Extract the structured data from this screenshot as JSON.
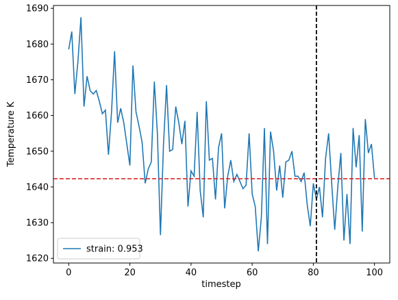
{
  "chart_data": {
    "type": "line",
    "x_label": "timestep",
    "y_label": "Temperature K",
    "x": [
      0,
      1,
      2,
      3,
      4,
      5,
      6,
      7,
      8,
      9,
      10,
      11,
      12,
      13,
      14,
      15,
      16,
      17,
      18,
      19,
      20,
      21,
      22,
      23,
      24,
      25,
      26,
      27,
      28,
      29,
      30,
      31,
      32,
      33,
      34,
      35,
      36,
      37,
      38,
      39,
      40,
      41,
      42,
      43,
      44,
      45,
      46,
      47,
      48,
      49,
      50,
      51,
      52,
      53,
      54,
      55,
      56,
      57,
      58,
      59,
      60,
      61,
      62,
      63,
      64,
      65,
      66,
      67,
      68,
      69,
      70,
      71,
      72,
      73,
      74,
      75,
      76,
      77,
      78,
      79,
      80,
      81,
      82,
      83,
      84,
      85,
      86,
      87,
      88,
      89,
      90,
      91,
      92,
      93,
      94,
      95,
      96,
      97,
      98,
      99,
      100
    ],
    "series": [
      {
        "name": "strain: 0.953",
        "color": "#1f77b4",
        "values": [
          1678.5,
          1683.5,
          1666,
          1675,
          1687.5,
          1662.5,
          1671,
          1667,
          1666,
          1667,
          1664,
          1660.5,
          1661.5,
          1649,
          1661,
          1678,
          1658,
          1662,
          1658,
          1652,
          1646,
          1674,
          1661,
          1657,
          1652.5,
          1641,
          1645,
          1647,
          1669.5,
          1655,
          1626.5,
          1652,
          1668.5,
          1650,
          1650.5,
          1662.5,
          1658,
          1652,
          1658.5,
          1634.5,
          1644.5,
          1643,
          1661,
          1639,
          1631.5,
          1664,
          1647.5,
          1648,
          1636.5,
          1651,
          1655,
          1634,
          1643,
          1647.5,
          1641.5,
          1643.5,
          1641.5,
          1639.5,
          1640.5,
          1655,
          1638,
          1634.5,
          1622,
          1631.5,
          1656.5,
          1624,
          1655.5,
          1650,
          1639,
          1646,
          1637,
          1647,
          1647.5,
          1650,
          1643,
          1643,
          1641.5,
          1644,
          1635,
          1629,
          1641,
          1636.5,
          1640,
          1631.5,
          1648,
          1655,
          1641,
          1628,
          1640,
          1649.5,
          1625,
          1638,
          1624,
          1656.5,
          1645.5,
          1654.5,
          1627.5,
          1659,
          1649.5,
          1652,
          1642.5
        ]
      }
    ],
    "hline": {
      "value": 1642.3,
      "color": "#d62728"
    },
    "vline": {
      "value": 81,
      "color": "#000000"
    },
    "xlim": [
      -5,
      105
    ],
    "ylim": [
      1618.7,
      1690.8
    ],
    "xticks": [
      0,
      20,
      40,
      60,
      80,
      100
    ],
    "yticks": [
      1620,
      1630,
      1640,
      1650,
      1660,
      1670,
      1680,
      1690
    ],
    "legend": "lower left"
  }
}
